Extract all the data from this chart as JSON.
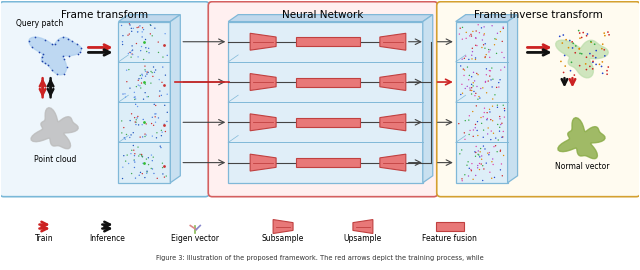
{
  "title": "Frame transform",
  "title2": "Neural Network",
  "title3": "Frame inverse transform",
  "label_query": "Query patch",
  "label_point": "Point cloud",
  "label_normal": "Normal vector",
  "legend_train": "Train",
  "legend_inference": "Inference",
  "legend_eigen": "Eigen vector",
  "legend_subsample": "Subsample",
  "legend_upsample": "Upsample",
  "legend_feature": "Feature fusion",
  "caption": "Figure 3: Illustration of the proposed framework. The red arrows depict the training process, while",
  "bg_color": "#ffffff",
  "box1_edge": "#7ab8d8",
  "box1_face": "#eef6fc",
  "box2_edge": "#d46060",
  "box2_face": "#fff0f0",
  "box3_edge": "#d4a030",
  "box3_face": "#fffbf0",
  "nn_box_edge": "#88b8d8",
  "nn_box_face": "#e8f4fc",
  "salmon": "#e87878",
  "salmon_edge": "#c05050",
  "red": "#cc2222",
  "black": "#111111",
  "gray": "#888888"
}
